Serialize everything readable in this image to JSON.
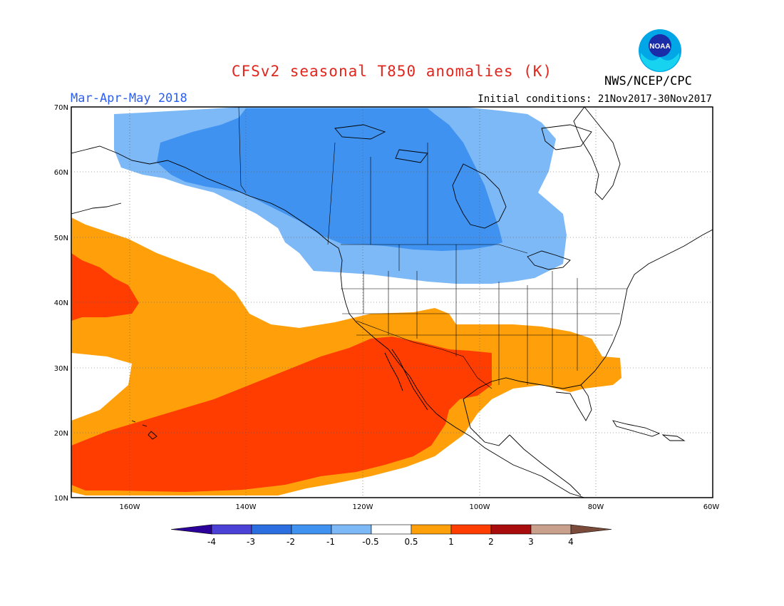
{
  "title": "CFSv2 seasonal T850 anomalies (K)",
  "agency": "NWS/NCEP/CPC",
  "season": "Mar-Apr-May 2018",
  "initial_conditions": "Initial conditions: 21Nov2017-30Nov2017",
  "logo_text": "NOAA",
  "map": {
    "lon_range": [
      -170,
      -60
    ],
    "lat_range": [
      10,
      70
    ],
    "lat_labels": [
      "70N",
      "60N",
      "50N",
      "40N",
      "30N",
      "20N",
      "10N"
    ],
    "lon_labels": [
      "160W",
      "140W",
      "120W",
      "100W",
      "80W",
      "60W"
    ]
  },
  "colorbar": {
    "labels": [
      "-4",
      "-3",
      "-2",
      "-1",
      "-0.5",
      "0.5",
      "1",
      "2",
      "3",
      "4"
    ],
    "colors": [
      "#2c009a",
      "#4b41d6",
      "#2a6ee0",
      "#3f92f0",
      "#7db9f7",
      "#ffffff",
      "#ffa00a",
      "#ff3d00",
      "#a80c0c",
      "#c8a08c",
      "#7a4a3a"
    ]
  },
  "anomaly_colors": {
    "neg_1_to_neg_0_5": "#7db9f7",
    "neg_2_to_neg_1": "#3f92f0",
    "pos_0_5_to_1": "#ffa00a",
    "pos_1_to_2": "#ff3d00"
  }
}
